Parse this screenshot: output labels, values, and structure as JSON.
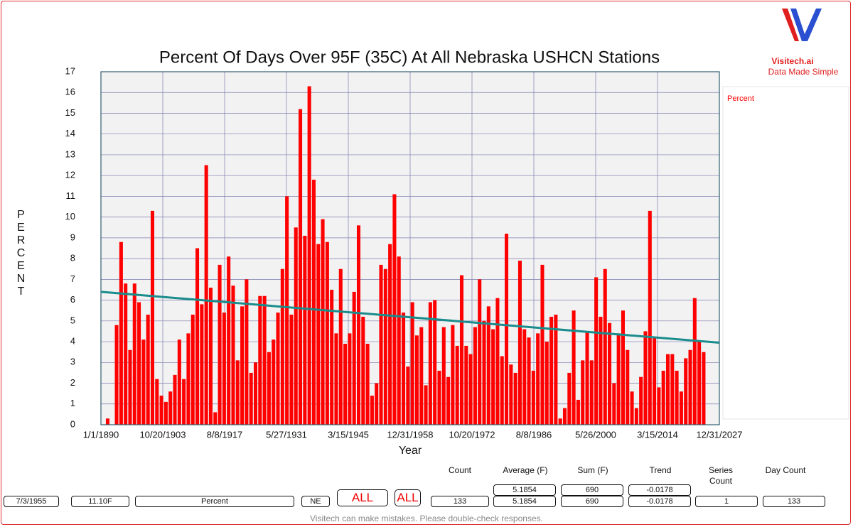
{
  "chart_data": {
    "type": "bar",
    "title": "Percent Of Days Over 95F (35C) At All Nebraska USHCN Stations",
    "x_label": "Year",
    "y_label": "PERCENT",
    "x": [
      1891,
      1892,
      1893,
      1894,
      1895,
      1896,
      1897,
      1898,
      1899,
      1900,
      1901,
      1902,
      1903,
      1904,
      1905,
      1906,
      1907,
      1908,
      1909,
      1910,
      1911,
      1912,
      1913,
      1914,
      1915,
      1916,
      1917,
      1918,
      1919,
      1920,
      1921,
      1922,
      1923,
      1924,
      1925,
      1926,
      1927,
      1928,
      1929,
      1930,
      1931,
      1932,
      1933,
      1934,
      1935,
      1936,
      1937,
      1938,
      1939,
      1940,
      1941,
      1942,
      1943,
      1944,
      1945,
      1946,
      1947,
      1948,
      1949,
      1950,
      1951,
      1952,
      1953,
      1954,
      1955,
      1956,
      1957,
      1958,
      1959,
      1960,
      1961,
      1962,
      1963,
      1964,
      1965,
      1966,
      1967,
      1968,
      1969,
      1970,
      1971,
      1972,
      1973,
      1974,
      1975,
      1976,
      1977,
      1978,
      1979,
      1980,
      1981,
      1982,
      1983,
      1984,
      1985,
      1986,
      1987,
      1988,
      1989,
      1990,
      1991,
      1992,
      1993,
      1994,
      1995,
      1996,
      1997,
      1998,
      1999,
      2000,
      2001,
      2002,
      2003,
      2004,
      2005,
      2006,
      2007,
      2008,
      2009,
      2010,
      2011,
      2012,
      2013,
      2014,
      2015,
      2016,
      2017,
      2018,
      2019,
      2020,
      2021,
      2022,
      2023,
      2024
    ],
    "series": [
      {
        "name": "Percent",
        "color": "#ff0000",
        "values": [
          0.3,
          null,
          4.8,
          8.8,
          6.8,
          3.6,
          6.8,
          5.9,
          4.1,
          5.3,
          10.3,
          2.2,
          1.4,
          1.1,
          1.6,
          2.4,
          4.1,
          2.2,
          4.4,
          5.3,
          8.5,
          5.8,
          12.5,
          6.6,
          0.6,
          7.7,
          5.4,
          8.1,
          6.7,
          3.1,
          5.7,
          7.0,
          2.5,
          3.0,
          6.2,
          6.2,
          3.5,
          4.1,
          5.4,
          7.5,
          11.0,
          5.3,
          9.5,
          15.2,
          9.1,
          16.3,
          11.8,
          8.7,
          9.9,
          8.8,
          6.5,
          4.4,
          7.5,
          3.9,
          4.4,
          6.4,
          9.6,
          5.2,
          3.9,
          1.4,
          2.0,
          7.7,
          7.5,
          8.7,
          11.1,
          8.1,
          5.4,
          2.8,
          5.9,
          4.3,
          4.7,
          1.9,
          5.9,
          6.0,
          2.6,
          4.7,
          2.3,
          4.8,
          3.8,
          7.2,
          3.8,
          3.4,
          4.7,
          7.0,
          5.0,
          5.7,
          4.6,
          6.1,
          3.3,
          9.2,
          2.9,
          2.5,
          7.9,
          4.6,
          4.2,
          2.6,
          4.4,
          7.7,
          4.0,
          5.2,
          5.3,
          0.3,
          0.8,
          2.5,
          5.5,
          1.2,
          3.1,
          4.5,
          3.1,
          7.1,
          5.2,
          7.5,
          4.9,
          2.0,
          4.4,
          5.5,
          3.6,
          1.6,
          0.8,
          2.3,
          4.5,
          10.3,
          4.2,
          1.8,
          2.6,
          3.4,
          3.4,
          2.6,
          1.6,
          3.2,
          3.6,
          6.1,
          4.0,
          3.5
        ]
      }
    ],
    "trend": {
      "color": "#1a8c8c",
      "x": [
        1890,
        2028
      ],
      "values": [
        6.4,
        3.95
      ]
    },
    "xlim": [
      1890,
      2028
    ],
    "xticks": [
      {
        "value": 1890,
        "label": "1/1/1890"
      },
      {
        "value": 1903.8,
        "label": "10/20/1903"
      },
      {
        "value": 1917.6,
        "label": "8/8/1917"
      },
      {
        "value": 1931.4,
        "label": "5/27/1931"
      },
      {
        "value": 1945.2,
        "label": "3/15/1945"
      },
      {
        "value": 1959.0,
        "label": "12/31/1958"
      },
      {
        "value": 1972.8,
        "label": "10/20/1972"
      },
      {
        "value": 1986.6,
        "label": "8/8/1986"
      },
      {
        "value": 2000.4,
        "label": "5/26/2000"
      },
      {
        "value": 2014.2,
        "label": "3/15/2014"
      },
      {
        "value": 2028.0,
        "label": "12/31/2027"
      }
    ],
    "ylim": [
      0,
      17
    ],
    "yticks": [
      0,
      1,
      2,
      3,
      4,
      5,
      6,
      7,
      8,
      9,
      10,
      11,
      12,
      13,
      14,
      15,
      16,
      17
    ],
    "grid": true,
    "legend": "right"
  },
  "logo": {
    "name": "Visitech.ai",
    "tagline": "Data Made Simple"
  },
  "stats": {
    "headers": [
      "Count",
      "Average (F)",
      "Sum (F)",
      "Trend",
      "Series Count",
      "Day Count"
    ],
    "date": "7/3/1955",
    "reading": "11.10F",
    "measure": "Percent",
    "state": "NE",
    "all_1": "ALL",
    "all_2": "ALL",
    "count": "133",
    "average_top": "5.1854",
    "average": "5.1854",
    "sum_top": "690",
    "sum": "690",
    "trend_top": "-0.0178",
    "trend": "-0.0178",
    "series_count": "1",
    "day_count": "133"
  },
  "disclaimer": "Visitech can make mistakes. Please double-check responses."
}
